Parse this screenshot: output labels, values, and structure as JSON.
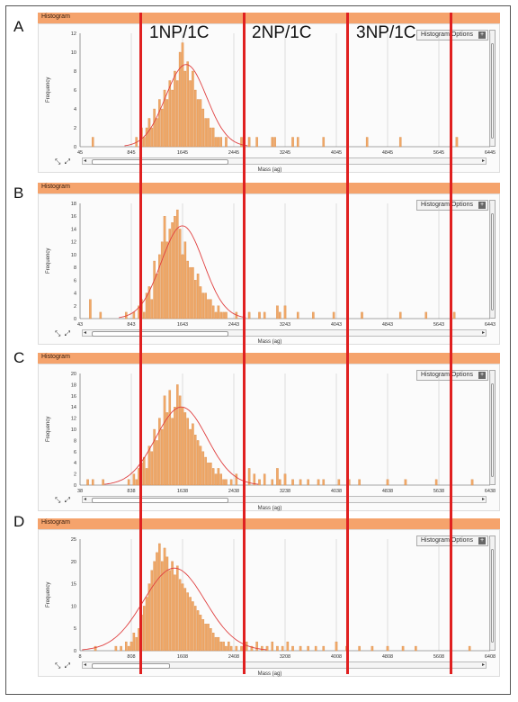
{
  "panel_letters": [
    "A",
    "B",
    "C",
    "D"
  ],
  "panel_title": "Histogram",
  "options_label": "Histogram Options",
  "options_icon": "plus-icon",
  "expand_icons": "⤡ ⤢",
  "x_axis_label": "Mass (ag)",
  "y_axis_label": "Frequency",
  "overlay_labels": [
    "1NP/1C",
    "2NP/1C",
    "3NP/1C"
  ],
  "colors": {
    "bar": "#f0a868",
    "bar_edge": "#d4843e",
    "fit": "#e04040",
    "header": "#f5a36c",
    "divider": "#e02020"
  },
  "chart_data": [
    {
      "type": "bar",
      "title": "Histogram",
      "xlabel": "Mass (ag)",
      "ylabel": "Frequency",
      "xlim": [
        45,
        6445
      ],
      "ylim": [
        0,
        12
      ],
      "x_ticks": [
        45,
        845,
        1645,
        2445,
        3245,
        4045,
        4845,
        5645,
        6445
      ],
      "y_ticks": [
        0,
        2,
        4,
        6,
        8,
        10,
        12
      ],
      "bin_width": 40,
      "bins": [
        [
          245,
          1
        ],
        [
          925,
          1
        ],
        [
          1005,
          2
        ],
        [
          1045,
          1
        ],
        [
          1085,
          2
        ],
        [
          1125,
          3
        ],
        [
          1165,
          2
        ],
        [
          1205,
          4
        ],
        [
          1245,
          3
        ],
        [
          1285,
          5
        ],
        [
          1325,
          4
        ],
        [
          1365,
          6
        ],
        [
          1405,
          5
        ],
        [
          1445,
          7
        ],
        [
          1485,
          6
        ],
        [
          1525,
          8
        ],
        [
          1565,
          7
        ],
        [
          1605,
          10
        ],
        [
          1645,
          11
        ],
        [
          1685,
          8
        ],
        [
          1725,
          9
        ],
        [
          1765,
          7
        ],
        [
          1805,
          8
        ],
        [
          1845,
          6
        ],
        [
          1885,
          5
        ],
        [
          1925,
          5
        ],
        [
          1965,
          4
        ],
        [
          2005,
          3
        ],
        [
          2045,
          3
        ],
        [
          2085,
          2
        ],
        [
          2125,
          2
        ],
        [
          2165,
          1
        ],
        [
          2205,
          1
        ],
        [
          2245,
          1
        ],
        [
          2325,
          1
        ],
        [
          2565,
          1
        ],
        [
          2685,
          1
        ],
        [
          2805,
          1
        ],
        [
          3045,
          1
        ],
        [
          3085,
          1
        ],
        [
          3365,
          1
        ],
        [
          3445,
          1
        ],
        [
          3845,
          1
        ],
        [
          4525,
          1
        ],
        [
          5045,
          1
        ],
        [
          5925,
          1
        ]
      ],
      "fit": {
        "shape": "gaussian",
        "mean": 1700,
        "sd": 320,
        "peak": 8.7
      }
    },
    {
      "type": "bar",
      "title": "Histogram",
      "xlabel": "Mass (ag)",
      "ylabel": "Frequency",
      "xlim": [
        43,
        6443
      ],
      "ylim": [
        0,
        18
      ],
      "x_ticks": [
        43,
        843,
        1643,
        2443,
        3243,
        4043,
        4843,
        5643,
        6443
      ],
      "y_ticks": [
        0,
        2,
        4,
        6,
        8,
        10,
        12,
        14,
        16,
        18
      ],
      "bin_width": 40,
      "bins": [
        [
          203,
          3
        ],
        [
          363,
          1
        ],
        [
          763,
          1
        ],
        [
          883,
          1
        ],
        [
          963,
          2
        ],
        [
          1003,
          3
        ],
        [
          1043,
          1
        ],
        [
          1083,
          4
        ],
        [
          1123,
          5
        ],
        [
          1163,
          3
        ],
        [
          1203,
          9
        ],
        [
          1243,
          7
        ],
        [
          1283,
          10
        ],
        [
          1323,
          12
        ],
        [
          1363,
          16
        ],
        [
          1403,
          12
        ],
        [
          1443,
          14
        ],
        [
          1483,
          15
        ],
        [
          1523,
          16
        ],
        [
          1563,
          17
        ],
        [
          1603,
          14
        ],
        [
          1643,
          10
        ],
        [
          1683,
          12
        ],
        [
          1723,
          9
        ],
        [
          1763,
          8
        ],
        [
          1803,
          8
        ],
        [
          1843,
          6
        ],
        [
          1883,
          7
        ],
        [
          1923,
          5
        ],
        [
          1963,
          4
        ],
        [
          2003,
          4
        ],
        [
          2043,
          3
        ],
        [
          2083,
          3
        ],
        [
          2123,
          2
        ],
        [
          2163,
          1
        ],
        [
          2203,
          2
        ],
        [
          2243,
          1
        ],
        [
          2283,
          1
        ],
        [
          2323,
          1
        ],
        [
          2483,
          1
        ],
        [
          2603,
          1
        ],
        [
          2683,
          1
        ],
        [
          2843,
          1
        ],
        [
          2923,
          1
        ],
        [
          3123,
          2
        ],
        [
          3163,
          1
        ],
        [
          3243,
          2
        ],
        [
          3443,
          1
        ],
        [
          3683,
          1
        ],
        [
          4003,
          1
        ],
        [
          4443,
          1
        ],
        [
          5043,
          1
        ],
        [
          5443,
          1
        ],
        [
          5883,
          1
        ]
      ],
      "fit": {
        "shape": "gaussian",
        "mean": 1640,
        "sd": 330,
        "peak": 14.5
      }
    },
    {
      "type": "bar",
      "title": "Histogram",
      "xlabel": "Mass (ag)",
      "ylabel": "Frequency",
      "xlim": [
        38,
        6438
      ],
      "ylim": [
        0,
        20
      ],
      "x_ticks": [
        38,
        838,
        1638,
        2438,
        3238,
        4038,
        4838,
        5638,
        6438
      ],
      "y_ticks": [
        0,
        2,
        4,
        6,
        8,
        10,
        12,
        14,
        16,
        18,
        20
      ],
      "bin_width": 40,
      "bins": [
        [
          158,
          1
        ],
        [
          238,
          1
        ],
        [
          398,
          1
        ],
        [
          798,
          1
        ],
        [
          878,
          2
        ],
        [
          918,
          1
        ],
        [
          958,
          3
        ],
        [
          998,
          4
        ],
        [
          1038,
          5
        ],
        [
          1078,
          3
        ],
        [
          1118,
          7
        ],
        [
          1158,
          6
        ],
        [
          1198,
          10
        ],
        [
          1238,
          8
        ],
        [
          1278,
          12
        ],
        [
          1318,
          10
        ],
        [
          1358,
          16
        ],
        [
          1398,
          13
        ],
        [
          1438,
          17
        ],
        [
          1478,
          12
        ],
        [
          1518,
          14
        ],
        [
          1558,
          18
        ],
        [
          1598,
          16
        ],
        [
          1638,
          14
        ],
        [
          1678,
          13
        ],
        [
          1718,
          12
        ],
        [
          1758,
          10
        ],
        [
          1798,
          11
        ],
        [
          1838,
          9
        ],
        [
          1878,
          8
        ],
        [
          1918,
          7
        ],
        [
          1958,
          6
        ],
        [
          1998,
          5
        ],
        [
          2038,
          4
        ],
        [
          2078,
          4
        ],
        [
          2118,
          3
        ],
        [
          2158,
          2
        ],
        [
          2198,
          3
        ],
        [
          2238,
          2
        ],
        [
          2278,
          1
        ],
        [
          2318,
          1
        ],
        [
          2398,
          1
        ],
        [
          2478,
          2
        ],
        [
          2598,
          1
        ],
        [
          2678,
          3
        ],
        [
          2758,
          2
        ],
        [
          2838,
          1
        ],
        [
          2918,
          2
        ],
        [
          3038,
          1
        ],
        [
          3118,
          3
        ],
        [
          3158,
          1
        ],
        [
          3238,
          2
        ],
        [
          3358,
          1
        ],
        [
          3478,
          1
        ],
        [
          3598,
          1
        ],
        [
          3758,
          1
        ],
        [
          3838,
          1
        ],
        [
          4078,
          1
        ],
        [
          4238,
          1
        ],
        [
          4398,
          1
        ],
        [
          4838,
          1
        ],
        [
          5118,
          1
        ],
        [
          5598,
          1
        ],
        [
          6158,
          1
        ]
      ],
      "fit": {
        "shape": "gaussian",
        "mean": 1620,
        "sd": 400,
        "peak": 14
      }
    },
    {
      "type": "bar",
      "title": "Histogram",
      "xlabel": "Mass (ag)",
      "ylabel": "Frequency",
      "xlim": [
        8,
        6408
      ],
      "ylim": [
        0,
        25
      ],
      "x_ticks": [
        8,
        808,
        1608,
        2408,
        3208,
        4008,
        4808,
        5608,
        6408
      ],
      "y_ticks": [
        0,
        5,
        10,
        15,
        20,
        25
      ],
      "bin_width": 40,
      "bins": [
        [
          248,
          1
        ],
        [
          568,
          1
        ],
        [
          648,
          1
        ],
        [
          728,
          2
        ],
        [
          768,
          1
        ],
        [
          808,
          2
        ],
        [
          848,
          4
        ],
        [
          888,
          3
        ],
        [
          928,
          5
        ],
        [
          968,
          8
        ],
        [
          1008,
          10
        ],
        [
          1048,
          12
        ],
        [
          1088,
          15
        ],
        [
          1128,
          18
        ],
        [
          1168,
          20
        ],
        [
          1208,
          22
        ],
        [
          1248,
          24
        ],
        [
          1288,
          20
        ],
        [
          1328,
          23
        ],
        [
          1368,
          21
        ],
        [
          1408,
          18
        ],
        [
          1448,
          20
        ],
        [
          1488,
          17
        ],
        [
          1528,
          19
        ],
        [
          1568,
          16
        ],
        [
          1608,
          15
        ],
        [
          1648,
          14
        ],
        [
          1688,
          13
        ],
        [
          1728,
          12
        ],
        [
          1768,
          11
        ],
        [
          1808,
          10
        ],
        [
          1848,
          9
        ],
        [
          1888,
          8
        ],
        [
          1928,
          7
        ],
        [
          1968,
          6
        ],
        [
          2008,
          6
        ],
        [
          2048,
          5
        ],
        [
          2088,
          4
        ],
        [
          2128,
          3
        ],
        [
          2168,
          3
        ],
        [
          2208,
          2
        ],
        [
          2248,
          2
        ],
        [
          2288,
          1
        ],
        [
          2328,
          2
        ],
        [
          2368,
          1
        ],
        [
          2448,
          1
        ],
        [
          2528,
          1
        ],
        [
          2608,
          2
        ],
        [
          2688,
          1
        ],
        [
          2768,
          2
        ],
        [
          2848,
          1
        ],
        [
          2928,
          1
        ],
        [
          3008,
          2
        ],
        [
          3088,
          1
        ],
        [
          3168,
          1
        ],
        [
          3248,
          2
        ],
        [
          3328,
          1
        ],
        [
          3448,
          1
        ],
        [
          3568,
          1
        ],
        [
          3688,
          1
        ],
        [
          3808,
          1
        ],
        [
          4008,
          2
        ],
        [
          4168,
          1
        ],
        [
          4368,
          1
        ],
        [
          4568,
          1
        ],
        [
          4808,
          1
        ],
        [
          5048,
          1
        ],
        [
          5248,
          1
        ],
        [
          6088,
          1
        ]
      ],
      "fit": {
        "shape": "gaussian",
        "mean": 1480,
        "sd": 480,
        "peak": 18.5
      }
    }
  ]
}
